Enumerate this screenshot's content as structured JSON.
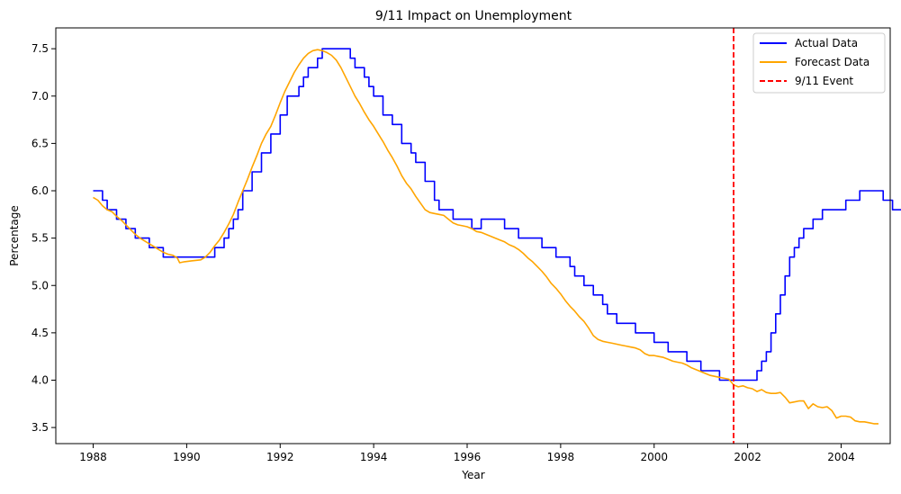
{
  "chart_data": {
    "type": "line",
    "title": "9/11 Impact on Unemployment",
    "xlabel": "Year",
    "ylabel": "Percentage",
    "xlim": [
      1987.2,
      2005.05
    ],
    "ylim": [
      3.33,
      7.72
    ],
    "xticks": [
      1988,
      1990,
      1992,
      1994,
      1996,
      1998,
      2000,
      2002,
      2004
    ],
    "yticks": [
      3.5,
      4.0,
      4.5,
      5.0,
      5.5,
      6.0,
      6.5,
      7.0,
      7.5
    ],
    "grid": false,
    "legend_position": "top-right",
    "series": [
      {
        "name": "Actual Data",
        "color": "#0000ff",
        "style": "solid",
        "step": true,
        "points": [
          [
            1988.0,
            6.0
          ],
          [
            1988.1,
            6.0
          ],
          [
            1988.2,
            5.9
          ],
          [
            1988.3,
            5.8
          ],
          [
            1988.4,
            5.8
          ],
          [
            1988.5,
            5.7
          ],
          [
            1988.6,
            5.7
          ],
          [
            1988.7,
            5.6
          ],
          [
            1988.8,
            5.6
          ],
          [
            1988.9,
            5.5
          ],
          [
            1989.0,
            5.5
          ],
          [
            1989.1,
            5.5
          ],
          [
            1989.2,
            5.4
          ],
          [
            1989.3,
            5.4
          ],
          [
            1989.4,
            5.4
          ],
          [
            1989.5,
            5.3
          ],
          [
            1989.6,
            5.3
          ],
          [
            1989.8,
            5.3
          ],
          [
            1990.0,
            5.3
          ],
          [
            1990.2,
            5.3
          ],
          [
            1990.4,
            5.3
          ],
          [
            1990.6,
            5.4
          ],
          [
            1990.8,
            5.5
          ],
          [
            1990.9,
            5.6
          ],
          [
            1991.0,
            5.7
          ],
          [
            1991.1,
            5.8
          ],
          [
            1991.2,
            6.0
          ],
          [
            1991.4,
            6.2
          ],
          [
            1991.6,
            6.4
          ],
          [
            1991.8,
            6.6
          ],
          [
            1992.0,
            6.8
          ],
          [
            1992.15,
            7.0
          ],
          [
            1992.3,
            7.0
          ],
          [
            1992.4,
            7.1
          ],
          [
            1992.5,
            7.2
          ],
          [
            1992.6,
            7.3
          ],
          [
            1992.7,
            7.3
          ],
          [
            1992.8,
            7.4
          ],
          [
            1992.9,
            7.5
          ],
          [
            1993.0,
            7.5
          ],
          [
            1993.1,
            7.5
          ],
          [
            1993.3,
            7.5
          ],
          [
            1993.4,
            7.5
          ],
          [
            1993.5,
            7.4
          ],
          [
            1993.6,
            7.3
          ],
          [
            1993.8,
            7.2
          ],
          [
            1993.9,
            7.1
          ],
          [
            1994.0,
            7.0
          ],
          [
            1994.2,
            6.8
          ],
          [
            1994.3,
            6.8
          ],
          [
            1994.4,
            6.7
          ],
          [
            1994.6,
            6.5
          ],
          [
            1994.7,
            6.5
          ],
          [
            1994.8,
            6.4
          ],
          [
            1994.9,
            6.3
          ],
          [
            1995.1,
            6.1
          ],
          [
            1995.3,
            5.9
          ],
          [
            1995.4,
            5.8
          ],
          [
            1995.5,
            5.8
          ],
          [
            1995.6,
            5.8
          ],
          [
            1995.7,
            5.7
          ],
          [
            1995.9,
            5.7
          ],
          [
            1996.0,
            5.7
          ],
          [
            1996.1,
            5.6
          ],
          [
            1996.2,
            5.6
          ],
          [
            1996.3,
            5.7
          ],
          [
            1996.5,
            5.7
          ],
          [
            1996.7,
            5.7
          ],
          [
            1996.8,
            5.6
          ],
          [
            1996.9,
            5.6
          ],
          [
            1997.0,
            5.6
          ],
          [
            1997.1,
            5.5
          ],
          [
            1997.3,
            5.5
          ],
          [
            1997.5,
            5.5
          ],
          [
            1997.6,
            5.4
          ],
          [
            1997.8,
            5.4
          ],
          [
            1997.9,
            5.3
          ],
          [
            1998.0,
            5.3
          ],
          [
            1998.1,
            5.3
          ],
          [
            1998.2,
            5.2
          ],
          [
            1998.3,
            5.1
          ],
          [
            1998.4,
            5.1
          ],
          [
            1998.5,
            5.0
          ],
          [
            1998.6,
            5.0
          ],
          [
            1998.7,
            4.9
          ],
          [
            1998.8,
            4.9
          ],
          [
            1998.9,
            4.8
          ],
          [
            1999.0,
            4.7
          ],
          [
            1999.1,
            4.7
          ],
          [
            1999.2,
            4.6
          ],
          [
            1999.4,
            4.6
          ],
          [
            1999.6,
            4.5
          ],
          [
            1999.8,
            4.5
          ],
          [
            2000.0,
            4.4
          ],
          [
            2000.2,
            4.4
          ],
          [
            2000.3,
            4.3
          ],
          [
            2000.5,
            4.3
          ],
          [
            2000.7,
            4.2
          ],
          [
            2000.9,
            4.2
          ],
          [
            2001.0,
            4.1
          ],
          [
            2001.2,
            4.1
          ],
          [
            2001.4,
            4.0
          ],
          [
            2001.6,
            4.0
          ],
          [
            2001.8,
            4.0
          ],
          [
            2002.0,
            4.0
          ],
          [
            2002.1,
            4.0
          ],
          [
            2002.2,
            4.1
          ],
          [
            2002.3,
            4.2
          ],
          [
            2002.4,
            4.3
          ],
          [
            2002.5,
            4.5
          ],
          [
            2002.6,
            4.7
          ],
          [
            2002.7,
            4.9
          ],
          [
            2002.8,
            5.1
          ],
          [
            2002.9,
            5.3
          ],
          [
            2003.0,
            5.4
          ],
          [
            2003.1,
            5.5
          ],
          [
            2003.2,
            5.6
          ],
          [
            2003.3,
            5.6
          ],
          [
            2003.4,
            5.7
          ],
          [
            2003.5,
            5.7
          ],
          [
            2003.6,
            5.8
          ],
          [
            2003.8,
            5.8
          ],
          [
            2004.0,
            5.8
          ],
          [
            2004.1,
            5.9
          ],
          [
            2004.2,
            5.9
          ],
          [
            2004.4,
            6.0
          ],
          [
            2004.6,
            6.0
          ],
          [
            2004.8,
            6.0
          ],
          [
            2004.9,
            5.9
          ],
          [
            2005.0,
            5.9
          ],
          [
            2005.1,
            5.8
          ],
          [
            2005.2,
            5.8
          ],
          [
            2005.3,
            5.7
          ],
          [
            2005.4,
            5.7
          ]
        ]
      },
      {
        "name": "Forecast Data",
        "color": "#ffa500",
        "style": "solid",
        "step": false,
        "points": [
          [
            1988.0,
            5.93
          ],
          [
            1988.1,
            5.9
          ],
          [
            1988.2,
            5.84
          ],
          [
            1988.3,
            5.8
          ],
          [
            1988.4,
            5.78
          ],
          [
            1988.5,
            5.73
          ],
          [
            1988.6,
            5.69
          ],
          [
            1988.7,
            5.64
          ],
          [
            1988.8,
            5.59
          ],
          [
            1988.9,
            5.54
          ],
          [
            1989.0,
            5.5
          ],
          [
            1989.1,
            5.47
          ],
          [
            1989.2,
            5.44
          ],
          [
            1989.3,
            5.41
          ],
          [
            1989.4,
            5.38
          ],
          [
            1989.5,
            5.35
          ],
          [
            1989.6,
            5.33
          ],
          [
            1989.7,
            5.32
          ],
          [
            1989.8,
            5.29
          ],
          [
            1989.85,
            5.24
          ],
          [
            1989.95,
            5.25
          ],
          [
            1990.1,
            5.26
          ],
          [
            1990.3,
            5.27
          ],
          [
            1990.4,
            5.3
          ],
          [
            1990.5,
            5.35
          ],
          [
            1990.6,
            5.42
          ],
          [
            1990.7,
            5.48
          ],
          [
            1990.8,
            5.56
          ],
          [
            1990.9,
            5.65
          ],
          [
            1991.0,
            5.75
          ],
          [
            1991.1,
            5.88
          ],
          [
            1991.2,
            6.0
          ],
          [
            1991.3,
            6.12
          ],
          [
            1991.4,
            6.25
          ],
          [
            1991.5,
            6.37
          ],
          [
            1991.6,
            6.5
          ],
          [
            1991.7,
            6.6
          ],
          [
            1991.8,
            6.68
          ],
          [
            1991.9,
            6.8
          ],
          [
            1992.0,
            6.93
          ],
          [
            1992.1,
            7.05
          ],
          [
            1992.2,
            7.15
          ],
          [
            1992.3,
            7.25
          ],
          [
            1992.4,
            7.33
          ],
          [
            1992.5,
            7.4
          ],
          [
            1992.6,
            7.45
          ],
          [
            1992.7,
            7.48
          ],
          [
            1992.8,
            7.49
          ],
          [
            1992.9,
            7.48
          ],
          [
            1993.0,
            7.46
          ],
          [
            1993.1,
            7.43
          ],
          [
            1993.2,
            7.38
          ],
          [
            1993.3,
            7.3
          ],
          [
            1993.4,
            7.2
          ],
          [
            1993.5,
            7.1
          ],
          [
            1993.6,
            7.0
          ],
          [
            1993.7,
            6.92
          ],
          [
            1993.8,
            6.83
          ],
          [
            1993.9,
            6.75
          ],
          [
            1994.0,
            6.68
          ],
          [
            1994.1,
            6.6
          ],
          [
            1994.2,
            6.52
          ],
          [
            1994.3,
            6.43
          ],
          [
            1994.4,
            6.35
          ],
          [
            1994.5,
            6.26
          ],
          [
            1994.6,
            6.16
          ],
          [
            1994.7,
            6.08
          ],
          [
            1994.8,
            6.02
          ],
          [
            1994.9,
            5.94
          ],
          [
            1995.0,
            5.87
          ],
          [
            1995.1,
            5.8
          ],
          [
            1995.2,
            5.77
          ],
          [
            1995.3,
            5.76
          ],
          [
            1995.4,
            5.75
          ],
          [
            1995.5,
            5.74
          ],
          [
            1995.6,
            5.7
          ],
          [
            1995.7,
            5.66
          ],
          [
            1995.8,
            5.64
          ],
          [
            1995.9,
            5.63
          ],
          [
            1996.0,
            5.62
          ],
          [
            1996.1,
            5.6
          ],
          [
            1996.2,
            5.57
          ],
          [
            1996.3,
            5.56
          ],
          [
            1996.4,
            5.54
          ],
          [
            1996.5,
            5.52
          ],
          [
            1996.6,
            5.5
          ],
          [
            1996.7,
            5.48
          ],
          [
            1996.8,
            5.46
          ],
          [
            1996.9,
            5.43
          ],
          [
            1997.0,
            5.41
          ],
          [
            1997.1,
            5.38
          ],
          [
            1997.2,
            5.34
          ],
          [
            1997.3,
            5.29
          ],
          [
            1997.4,
            5.25
          ],
          [
            1997.5,
            5.2
          ],
          [
            1997.6,
            5.15
          ],
          [
            1997.7,
            5.09
          ],
          [
            1997.8,
            5.02
          ],
          [
            1997.9,
            4.97
          ],
          [
            1998.0,
            4.91
          ],
          [
            1998.1,
            4.84
          ],
          [
            1998.2,
            4.78
          ],
          [
            1998.3,
            4.73
          ],
          [
            1998.4,
            4.67
          ],
          [
            1998.5,
            4.62
          ],
          [
            1998.6,
            4.55
          ],
          [
            1998.7,
            4.47
          ],
          [
            1998.8,
            4.43
          ],
          [
            1998.9,
            4.41
          ],
          [
            1999.0,
            4.4
          ],
          [
            1999.1,
            4.39
          ],
          [
            1999.2,
            4.38
          ],
          [
            1999.3,
            4.37
          ],
          [
            1999.4,
            4.36
          ],
          [
            1999.5,
            4.35
          ],
          [
            1999.6,
            4.34
          ],
          [
            1999.7,
            4.32
          ],
          [
            1999.8,
            4.28
          ],
          [
            1999.9,
            4.26
          ],
          [
            2000.0,
            4.26
          ],
          [
            2000.1,
            4.25
          ],
          [
            2000.2,
            4.24
          ],
          [
            2000.3,
            4.22
          ],
          [
            2000.4,
            4.2
          ],
          [
            2000.5,
            4.19
          ],
          [
            2000.6,
            4.18
          ],
          [
            2000.7,
            4.16
          ],
          [
            2000.8,
            4.13
          ],
          [
            2000.9,
            4.11
          ],
          [
            2001.0,
            4.09
          ],
          [
            2001.1,
            4.07
          ],
          [
            2001.2,
            4.05
          ],
          [
            2001.3,
            4.04
          ],
          [
            2001.4,
            4.03
          ],
          [
            2001.5,
            4.02
          ],
          [
            2001.6,
            4.01
          ],
          [
            2001.7,
            3.95
          ],
          [
            2001.8,
            3.93
          ],
          [
            2001.9,
            3.94
          ],
          [
            2002.0,
            3.92
          ],
          [
            2002.1,
            3.91
          ],
          [
            2002.2,
            3.88
          ],
          [
            2002.3,
            3.9
          ],
          [
            2002.4,
            3.87
          ],
          [
            2002.5,
            3.86
          ],
          [
            2002.6,
            3.86
          ],
          [
            2002.7,
            3.87
          ],
          [
            2002.8,
            3.82
          ],
          [
            2002.9,
            3.76
          ],
          [
            2003.0,
            3.77
          ],
          [
            2003.1,
            3.78
          ],
          [
            2003.2,
            3.78
          ],
          [
            2003.3,
            3.7
          ],
          [
            2003.4,
            3.75
          ],
          [
            2003.5,
            3.72
          ],
          [
            2003.6,
            3.71
          ],
          [
            2003.7,
            3.72
          ],
          [
            2003.8,
            3.68
          ],
          [
            2003.9,
            3.6
          ],
          [
            2004.0,
            3.62
          ],
          [
            2004.1,
            3.62
          ],
          [
            2004.2,
            3.61
          ],
          [
            2004.3,
            3.57
          ],
          [
            2004.4,
            3.56
          ],
          [
            2004.5,
            3.56
          ],
          [
            2004.6,
            3.55
          ],
          [
            2004.7,
            3.54
          ],
          [
            2004.8,
            3.54
          ]
        ]
      },
      {
        "name": "9/11 Event",
        "color": "#ff0000",
        "style": "dashed",
        "vline_x": 2001.7
      }
    ]
  }
}
